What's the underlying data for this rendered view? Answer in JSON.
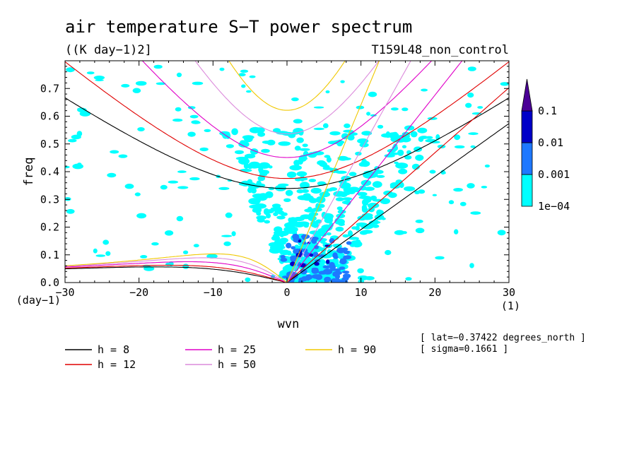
{
  "header": {
    "title": "air temperature S−T power spectrum",
    "units": "((K day−1)2]",
    "run": "T159L48_non_control"
  },
  "meta_lines": [
    "[ lat=−0.37422 degrees_north ]",
    "[ sigma=0.1661 ]"
  ],
  "chart_data": {
    "type": "heatmap",
    "title": "air temperature S−T power spectrum",
    "xlabel": "wvn",
    "ylabel": "freq",
    "x_units": "(1)",
    "y_units": "(day−1)",
    "xlim": [
      -30,
      30
    ],
    "ylim": [
      0,
      0.8
    ],
    "x_ticks": [
      -30,
      -20,
      -10,
      0,
      10,
      20,
      30
    ],
    "x_tick_labels": [
      "−30",
      "−20",
      "−10",
      "0",
      "10",
      "20",
      "30"
    ],
    "y_ticks": [
      0,
      0.1,
      0.2,
      0.3,
      0.4,
      0.5,
      0.6,
      0.7
    ],
    "y_tick_labels": [
      "0.0",
      "0.1",
      "0.2",
      "0.3",
      "0.4",
      "0.5",
      "0.6",
      "0.7"
    ],
    "colorbar": {
      "levels": [
        "1e−04",
        "0.001",
        "0.01",
        "0.1"
      ],
      "colors": [
        "#00ffff",
        "#1e78ff",
        "#0000c8",
        "#4b0096"
      ]
    },
    "dispersion_curves": [
      {
        "name": "h = 8",
        "h": 8,
        "color": "#000000"
      },
      {
        "name": "h = 12",
        "h": 12,
        "color": "#e00000"
      },
      {
        "name": "h = 25",
        "h": 25,
        "color": "#e000c8"
      },
      {
        "name": "h = 50",
        "h": 50,
        "color": "#dc8cdc"
      },
      {
        "name": "h = 90",
        "h": 90,
        "color": "#f0c800"
      }
    ]
  }
}
